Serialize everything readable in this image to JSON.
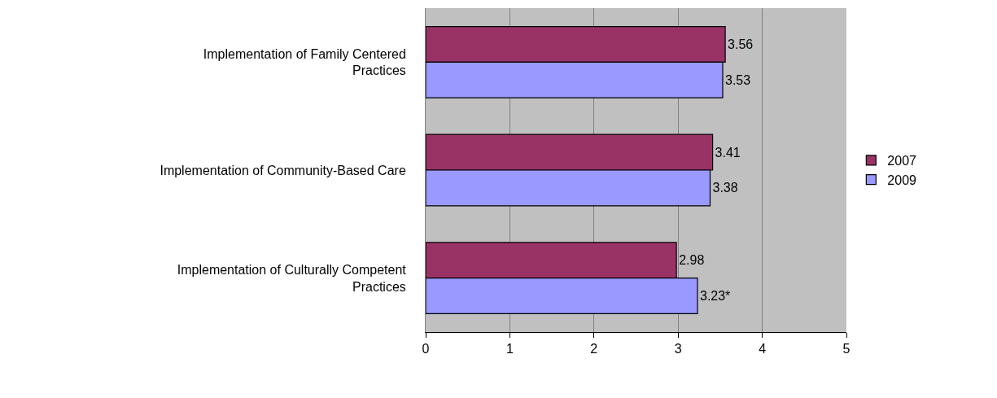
{
  "chart_data": {
    "type": "bar",
    "orientation": "horizontal",
    "categories": [
      "Implementation of Family Centered Practices",
      "Implementation of Community-Based Care",
      "Implementation of Culturally Competent Practices"
    ],
    "series": [
      {
        "name": "2007",
        "color": "#993366",
        "values": [
          3.56,
          3.41,
          2.98
        ],
        "value_labels": [
          "3.56",
          "3.41",
          "2.98"
        ]
      },
      {
        "name": "2009",
        "color": "#9999ff",
        "values": [
          3.53,
          3.38,
          3.23
        ],
        "value_labels": [
          "3.53",
          "3.38",
          "3.23*"
        ]
      }
    ],
    "xlim": [
      0,
      5
    ],
    "xticks": [
      0,
      1,
      2,
      3,
      4,
      5
    ],
    "grid": "x",
    "legend": "right"
  }
}
